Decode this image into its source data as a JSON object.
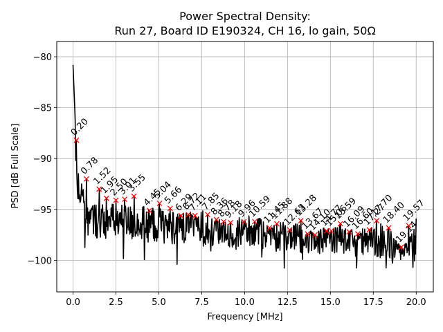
{
  "chart_data": {
    "type": "line",
    "title": "Power Spectral Density:",
    "subtitle": "Run 27, Board ID E190324, CH 16, lo gain, 50Ω",
    "xlabel": "Frequency [MHz]",
    "ylabel": "PSD [dB Full Scale]",
    "xlim": [
      -0.95,
      21.0
    ],
    "ylim": [
      -103.1,
      -78.5
    ],
    "xticks": [
      0.0,
      2.5,
      5.0,
      7.5,
      10.0,
      12.5,
      15.0,
      17.5,
      20.0
    ],
    "xtick_labels": [
      "0.0",
      "2.5",
      "5.0",
      "7.5",
      "10.0",
      "12.5",
      "15.0",
      "17.5",
      "20.0"
    ],
    "yticks": [
      -80,
      -85,
      -90,
      -95,
      -100
    ],
    "ytick_labels": [
      "−80",
      "−85",
      "−90",
      "−95",
      "−100"
    ],
    "grid": true,
    "legend": "none",
    "series": [
      {
        "name": "PSD",
        "color": "#000000",
        "description": "Noisy PSD trace from 0 to 20 MHz; starts near -80.8 dB at DC, drops to about -94 dB by 1 MHz, then slowly declines with noise to roughly -97 to -100 dB near 20 MHz",
        "start": {
          "x": 0.0,
          "y": -80.8
        },
        "end": {
          "x": 20.0,
          "y": -95.9
        },
        "min_approx": -101.9
      }
    ],
    "peaks": {
      "marker": "x",
      "color": "#ff0000",
      "points": [
        {
          "x": 0.2,
          "y": -88.2,
          "label": "0.20"
        },
        {
          "x": 0.78,
          "y": -92.0,
          "label": "0.78"
        },
        {
          "x": 1.52,
          "y": -93.0,
          "label": "1.52"
        },
        {
          "x": 1.95,
          "y": -93.9,
          "label": "1.95"
        },
        {
          "x": 2.5,
          "y": -94.1,
          "label": "2.50"
        },
        {
          "x": 3.01,
          "y": -94.0,
          "label": "3.01"
        },
        {
          "x": 3.55,
          "y": -93.7,
          "label": "3.55"
        },
        {
          "x": 4.45,
          "y": -95.1,
          "label": "4.45"
        },
        {
          "x": 5.04,
          "y": -94.4,
          "label": "5.04"
        },
        {
          "x": 5.66,
          "y": -94.9,
          "label": "5.66"
        },
        {
          "x": 6.29,
          "y": -95.6,
          "label": "6.29"
        },
        {
          "x": 6.72,
          "y": -95.5,
          "label": "6.72"
        },
        {
          "x": 7.11,
          "y": -95.6,
          "label": "7.11"
        },
        {
          "x": 7.85,
          "y": -95.5,
          "label": "7.85"
        },
        {
          "x": 8.36,
          "y": -96.0,
          "label": "8.36"
        },
        {
          "x": 8.78,
          "y": -96.2,
          "label": "8.78"
        },
        {
          "x": 9.18,
          "y": -96.3,
          "label": "9.18"
        },
        {
          "x": 9.96,
          "y": -96.2,
          "label": "9.96"
        },
        {
          "x": 10.59,
          "y": -96.2,
          "label": "10.59"
        },
        {
          "x": 11.45,
          "y": -96.8,
          "label": "11.45"
        },
        {
          "x": 11.88,
          "y": -96.4,
          "label": "11.88"
        },
        {
          "x": 12.63,
          "y": -97.0,
          "label": "12.63"
        },
        {
          "x": 13.28,
          "y": -96.1,
          "label": "13.28"
        },
        {
          "x": 13.67,
          "y": -97.4,
          "label": "13.67"
        },
        {
          "x": 14.1,
          "y": -97.5,
          "label": "14.10"
        },
        {
          "x": 14.77,
          "y": -97.1,
          "label": "14.77"
        },
        {
          "x": 15.06,
          "y": -97.1,
          "label": "15.06"
        },
        {
          "x": 15.59,
          "y": -96.4,
          "label": "15.59"
        },
        {
          "x": 16.09,
          "y": -97.2,
          "label": "16.09"
        },
        {
          "x": 16.6,
          "y": -97.4,
          "label": "16.60"
        },
        {
          "x": 17.27,
          "y": -97.0,
          "label": "17.27"
        },
        {
          "x": 17.7,
          "y": -96.1,
          "label": "17.70"
        },
        {
          "x": 18.4,
          "y": -96.8,
          "label": "18.40"
        },
        {
          "x": 19.14,
          "y": -98.7,
          "label": "19.14"
        },
        {
          "x": 19.57,
          "y": -96.6,
          "label": "19.57"
        }
      ]
    }
  }
}
